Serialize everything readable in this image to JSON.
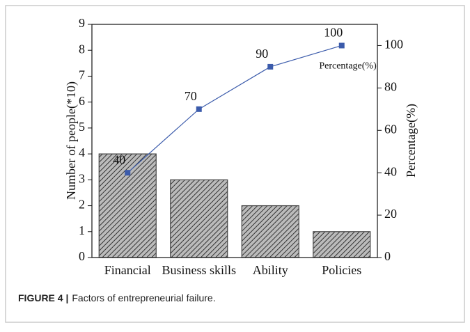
{
  "chart_data": {
    "type": "bar",
    "categories": [
      "Financial",
      "Business skills",
      "Ability",
      "Policies"
    ],
    "series": [
      {
        "type": "bar",
        "color": "#444444",
        "values": [
          4,
          3,
          2,
          1
        ]
      },
      {
        "type": "line",
        "name": "Percentage(%)",
        "color": "#3b5bab",
        "axis": "y2",
        "values": [
          40,
          70,
          90,
          100
        ]
      }
    ],
    "ylabel": "Number of people(*10)",
    "y2label": "Percentage(%)",
    "ylim": [
      0,
      9
    ],
    "yticks": [
      0,
      1,
      2,
      3,
      4,
      5,
      6,
      7,
      8,
      9
    ],
    "y2lim": [
      0,
      110
    ],
    "y2ticks": [
      0,
      20,
      40,
      60,
      80,
      100
    ]
  },
  "caption": {
    "label": "FIGURE 4 |",
    "text": "Factors of entrepreneurial failure."
  }
}
